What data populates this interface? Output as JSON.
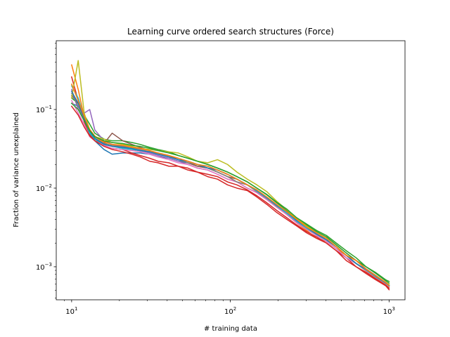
{
  "chart_data": {
    "type": "line",
    "title": "Learning curve ordered search structures (Force)",
    "xlabel": "# training data",
    "ylabel": "Fraction of variance unexplained",
    "xscale": "log",
    "yscale": "log",
    "xlim": [
      8,
      1260
    ],
    "ylim": [
      0.00038,
      0.75
    ],
    "grid": false,
    "xticks": [
      {
        "value": 10,
        "base": "10",
        "exp": "1"
      },
      {
        "value": 100,
        "base": "10",
        "exp": "2"
      },
      {
        "value": 1000,
        "base": "10",
        "exp": "3"
      }
    ],
    "yticks": [
      {
        "value": 0.001,
        "base": "10",
        "exp": "−3"
      },
      {
        "value": 0.01,
        "base": "10",
        "exp": "−2"
      },
      {
        "value": 0.1,
        "base": "10",
        "exp": "−1"
      }
    ],
    "x": [
      10,
      11,
      12,
      13,
      14,
      16,
      18,
      21,
      24,
      27,
      31,
      35,
      41,
      47,
      54,
      62,
      72,
      83,
      96,
      110,
      128,
      147,
      170,
      196,
      227,
      262,
      302,
      349,
      403,
      465,
      537,
      620,
      716,
      827,
      955,
      1000
    ],
    "series": [
      {
        "color": "#1f77b4",
        "values": [
          0.12,
          0.11,
          0.075,
          0.05,
          0.04,
          0.031,
          0.027,
          0.028,
          0.028,
          0.028,
          0.027,
          0.025,
          0.024,
          0.022,
          0.021,
          0.019,
          0.018,
          0.017,
          0.015,
          0.013,
          0.011,
          0.0093,
          0.0075,
          0.006,
          0.0049,
          0.0038,
          0.0031,
          0.0026,
          0.0022,
          0.0018,
          0.0014,
          0.0011,
          0.00092,
          0.00075,
          0.00062,
          0.00058
        ]
      },
      {
        "color": "#ff7f0e",
        "values": [
          0.37,
          0.18,
          0.08,
          0.055,
          0.045,
          0.038,
          0.034,
          0.033,
          0.031,
          0.03,
          0.029,
          0.027,
          0.025,
          0.023,
          0.021,
          0.019,
          0.018,
          0.016,
          0.014,
          0.012,
          0.011,
          0.009,
          0.0073,
          0.0058,
          0.0046,
          0.0036,
          0.0029,
          0.0023,
          0.0021,
          0.0017,
          0.0014,
          0.0011,
          0.00088,
          0.00072,
          0.0006,
          0.00055
        ]
      },
      {
        "color": "#2ca02c",
        "values": [
          0.14,
          0.12,
          0.085,
          0.065,
          0.05,
          0.042,
          0.04,
          0.04,
          0.038,
          0.036,
          0.033,
          0.031,
          0.029,
          0.026,
          0.024,
          0.022,
          0.02,
          0.018,
          0.016,
          0.014,
          0.012,
          0.01,
          0.0082,
          0.0065,
          0.0052,
          0.0041,
          0.0034,
          0.0028,
          0.0024,
          0.0019,
          0.0015,
          0.0012,
          0.001,
          0.00082,
          0.00066,
          0.00062
        ]
      },
      {
        "color": "#d62728",
        "values": [
          0.26,
          0.13,
          0.07,
          0.048,
          0.04,
          0.035,
          0.032,
          0.031,
          0.028,
          0.026,
          0.024,
          0.022,
          0.021,
          0.019,
          0.018,
          0.016,
          0.015,
          0.014,
          0.012,
          0.011,
          0.0095,
          0.008,
          0.0065,
          0.0052,
          0.0042,
          0.0034,
          0.0028,
          0.0024,
          0.002,
          0.0016,
          0.0013,
          0.001,
          0.00085,
          0.0007,
          0.00058,
          0.00053
        ]
      },
      {
        "color": "#9467bd",
        "values": [
          0.18,
          0.1,
          0.09,
          0.1,
          0.055,
          0.04,
          0.036,
          0.034,
          0.031,
          0.03,
          0.028,
          0.026,
          0.024,
          0.022,
          0.02,
          0.018,
          0.017,
          0.015,
          0.013,
          0.012,
          0.01,
          0.0088,
          0.0072,
          0.0058,
          0.0047,
          0.0037,
          0.003,
          0.0025,
          0.0021,
          0.0017,
          0.0013,
          0.0011,
          0.0009,
          0.00074,
          0.00061,
          0.00057
        ]
      },
      {
        "color": "#8c564b",
        "values": [
          0.15,
          0.12,
          0.08,
          0.055,
          0.04,
          0.037,
          0.05,
          0.04,
          0.036,
          0.033,
          0.03,
          0.028,
          0.026,
          0.023,
          0.021,
          0.019,
          0.018,
          0.016,
          0.014,
          0.013,
          0.011,
          0.0093,
          0.0076,
          0.0061,
          0.005,
          0.0039,
          0.0032,
          0.0026,
          0.0022,
          0.0018,
          0.0014,
          0.0012,
          0.00094,
          0.00077,
          0.00063,
          0.00059
        ]
      },
      {
        "color": "#e377c2",
        "values": [
          0.13,
          0.09,
          0.065,
          0.045,
          0.04,
          0.035,
          0.032,
          0.031,
          0.03,
          0.029,
          0.027,
          0.025,
          0.023,
          0.021,
          0.02,
          0.018,
          0.017,
          0.015,
          0.013,
          0.012,
          0.01,
          0.0087,
          0.0071,
          0.0057,
          0.0046,
          0.0036,
          0.003,
          0.0025,
          0.0021,
          0.0017,
          0.0013,
          0.0011,
          0.00089,
          0.00073,
          0.00061,
          0.00056
        ]
      },
      {
        "color": "#7f7f7f",
        "values": [
          0.16,
          0.11,
          0.075,
          0.05,
          0.043,
          0.037,
          0.035,
          0.034,
          0.033,
          0.031,
          0.029,
          0.027,
          0.025,
          0.023,
          0.021,
          0.02,
          0.018,
          0.016,
          0.014,
          0.012,
          0.011,
          0.0091,
          0.0074,
          0.0059,
          0.0048,
          0.0038,
          0.0031,
          0.0026,
          0.0022,
          0.0018,
          0.0014,
          0.0011,
          0.00091,
          0.00075,
          0.00062,
          0.00058
        ]
      },
      {
        "color": "#bcbd22",
        "values": [
          0.14,
          0.42,
          0.09,
          0.055,
          0.045,
          0.042,
          0.038,
          0.036,
          0.034,
          0.032,
          0.031,
          0.03,
          0.029,
          0.028,
          0.025,
          0.022,
          0.021,
          0.023,
          0.02,
          0.016,
          0.013,
          0.011,
          0.009,
          0.0068,
          0.0053,
          0.0041,
          0.0033,
          0.0027,
          0.0022,
          0.0018,
          0.0014,
          0.0011,
          0.00092,
          0.00076,
          0.00063,
          0.00059
        ]
      },
      {
        "color": "#17becf",
        "values": [
          0.2,
          0.14,
          0.08,
          0.05,
          0.042,
          0.036,
          0.034,
          0.032,
          0.031,
          0.03,
          0.029,
          0.027,
          0.025,
          0.023,
          0.022,
          0.02,
          0.019,
          0.017,
          0.015,
          0.013,
          0.011,
          0.0092,
          0.0075,
          0.006,
          0.0048,
          0.0038,
          0.0031,
          0.0026,
          0.0022,
          0.0018,
          0.0014,
          0.0011,
          0.00091,
          0.00074,
          0.00062,
          0.00057
        ]
      },
      {
        "color": "#1f77b4",
        "values": [
          0.17,
          0.12,
          0.078,
          0.053,
          0.043,
          0.036,
          0.034,
          0.033,
          0.032,
          0.03,
          0.029,
          0.027,
          0.025,
          0.023,
          0.022,
          0.02,
          0.018,
          0.017,
          0.015,
          0.013,
          0.011,
          0.0094,
          0.0076,
          0.0061,
          0.005,
          0.0039,
          0.0032,
          0.0026,
          0.0022,
          0.0018,
          0.0014,
          0.0011,
          0.00092,
          0.00075,
          0.00062,
          0.00058
        ]
      },
      {
        "color": "#ff7f0e",
        "values": [
          0.21,
          0.13,
          0.082,
          0.056,
          0.046,
          0.039,
          0.036,
          0.035,
          0.033,
          0.032,
          0.03,
          0.028,
          0.026,
          0.024,
          0.022,
          0.02,
          0.019,
          0.017,
          0.015,
          0.013,
          0.011,
          0.0095,
          0.0077,
          0.0062,
          0.005,
          0.004,
          0.0032,
          0.0027,
          0.0023,
          0.0018,
          0.0014,
          0.0012,
          0.00093,
          0.00076,
          0.00063,
          0.00058
        ]
      },
      {
        "color": "#2ca02c",
        "values": [
          0.12,
          0.1,
          0.072,
          0.054,
          0.045,
          0.04,
          0.038,
          0.037,
          0.035,
          0.034,
          0.032,
          0.03,
          0.028,
          0.026,
          0.024,
          0.022,
          0.02,
          0.018,
          0.016,
          0.014,
          0.012,
          0.01,
          0.0083,
          0.0066,
          0.0054,
          0.0042,
          0.0035,
          0.0029,
          0.0025,
          0.002,
          0.0016,
          0.0013,
          0.001,
          0.00084,
          0.00068,
          0.00065
        ]
      },
      {
        "color": "#d62728",
        "values": [
          0.11,
          0.085,
          0.06,
          0.046,
          0.04,
          0.034,
          0.031,
          0.029,
          0.027,
          0.025,
          0.022,
          0.021,
          0.019,
          0.019,
          0.017,
          0.016,
          0.014,
          0.013,
          0.011,
          0.01,
          0.0093,
          0.0077,
          0.0062,
          0.0049,
          0.004,
          0.0033,
          0.0027,
          0.0023,
          0.002,
          0.0016,
          0.0012,
          0.001,
          0.00082,
          0.00068,
          0.00057,
          0.00051
        ]
      }
    ]
  }
}
